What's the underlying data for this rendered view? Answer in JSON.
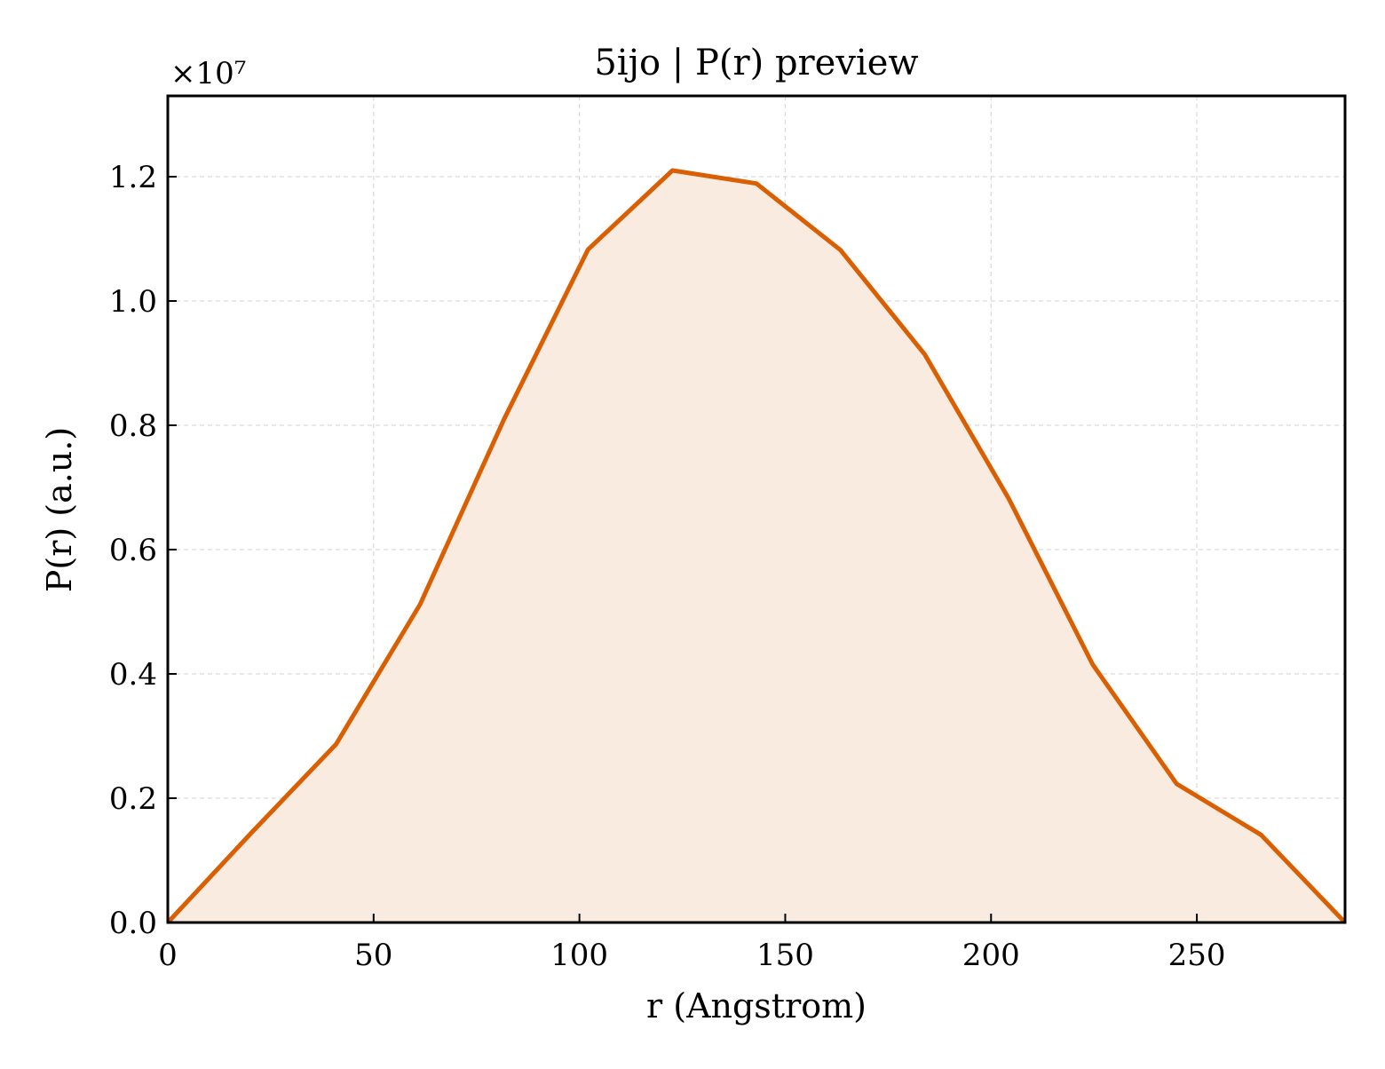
{
  "chart_data": {
    "type": "area",
    "title": "5ijo | P(r) preview",
    "xlabel": "r (Angstrom)",
    "ylabel": "P(r) (a.u.)",
    "y_multiplier_label": "×10⁷",
    "y_scale": 10000000,
    "xlim": [
      0,
      286
    ],
    "ylim": [
      0,
      13300000
    ],
    "x_ticks": [
      0,
      50,
      100,
      150,
      200,
      250
    ],
    "x_tick_labels": [
      "0",
      "50",
      "100",
      "150",
      "200",
      "250"
    ],
    "y_ticks": [
      0,
      2000000,
      4000000,
      6000000,
      8000000,
      10000000,
      12000000
    ],
    "y_tick_labels": [
      "0.0",
      "0.2",
      "0.4",
      "0.6",
      "0.8",
      "1.0",
      "1.2"
    ],
    "grid": true,
    "legend": "none",
    "series": [
      {
        "x": [
          0,
          20.4,
          40.9,
          61.3,
          81.7,
          102.1,
          122.6,
          143.0,
          163.4,
          183.9,
          204.3,
          224.7,
          245.1,
          265.6,
          286.0
        ],
        "y": [
          0,
          1450000,
          2870000,
          5120000,
          8100000,
          10830000,
          12100000,
          11890000,
          10820000,
          9140000,
          6820000,
          4150000,
          2230000,
          1410000,
          0
        ]
      }
    ],
    "colors": {
      "line": "#d95f02",
      "fill": "#f9ebe0",
      "grid": "#d9d9d9",
      "axes": "#000000"
    }
  }
}
